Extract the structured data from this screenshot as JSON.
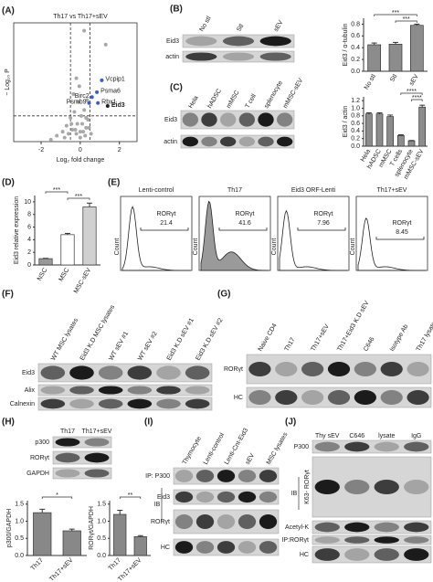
{
  "figure": {
    "panel_labels": [
      "(A)",
      "(B)",
      "(C)",
      "(D)",
      "(E)",
      "(F)",
      "(G)",
      "(H)",
      "(I)",
      "(J)"
    ],
    "B_blot": {
      "lanes": [
        "No stl",
        "Stl",
        "sEV"
      ],
      "rows": [
        "Eid3",
        "actin"
      ]
    },
    "C_blot": {
      "lanes": [
        "Hela",
        "hADSC",
        "mMSC",
        "T cell",
        "splenocyte",
        "mMSC-sEV"
      ],
      "rows": [
        "Eid3",
        "actin"
      ]
    },
    "E_flow": [
      {
        "title": "Lenti-control",
        "gate": "RORγt",
        "percent": "21.4"
      },
      {
        "title": "Th17",
        "gate": "RORγt",
        "percent": "41.6"
      },
      {
        "title": "Eid3 ORF-Lenti",
        "gate": "RORγt",
        "percent": "7.96"
      },
      {
        "title": "Th17+sEV",
        "gate": "RORγt",
        "percent": "8.45"
      }
    ],
    "E_axis": "Count",
    "F_blot": {
      "lanes": [
        "WT MSC lysates",
        "Eid3 K.D MSC lysates",
        "WT sEV #1",
        "WT sEV #2",
        "Eid3 K.D sEV #1",
        "Eid3 K.D sEV #2"
      ],
      "rows": [
        "Eid3",
        "Alix",
        "Calnexin"
      ]
    },
    "G_blot": {
      "lanes": [
        "Naive CD4",
        "Th17",
        "Th17+sEV",
        "Th17+Eid3 K.D sEV",
        "C646",
        "Isotype Ab",
        "Th17 lysates"
      ],
      "rows": [
        "RORγt",
        "HC"
      ]
    },
    "H_blot": {
      "lanes": [
        "Th17",
        "Th17+sEV"
      ],
      "rows": [
        "p300",
        "RORγt",
        "GAPDH"
      ]
    },
    "I_blot": {
      "lanes": [
        "Thymocyte",
        "Lenti-control",
        "Lenti-Cnt-Eid3",
        "sEV",
        "MSC lysates"
      ],
      "rows": [
        "IP: P300",
        "Eid3",
        "RORγt",
        "HC"
      ],
      "ib": "IB"
    },
    "J_blot": {
      "lanes": [
        "Thy sEV",
        "C646",
        "lysate",
        "IgG"
      ],
      "rows": [
        "P300",
        "K63- RORγt",
        "Acetyl-K",
        "IP:RORγt",
        "HC"
      ],
      "ib": "IB"
    }
  },
  "chart_data": [
    {
      "type": "scatter",
      "title": "Th17 vs Th17+sEV",
      "x_label": "Log₂ fold change",
      "y_label": "− Log₁₀ P",
      "xlim": [
        -3.4,
        2.9
      ],
      "ylim": [
        0,
        6
      ],
      "xticks": [
        -2,
        0,
        2
      ],
      "color": "#a8a8a8",
      "thresholds": {
        "x": [
          -0.5,
          0.5
        ],
        "y": 1.3
      },
      "x": [
        -1.2,
        -0.9,
        -0.7,
        -0.5,
        -0.4,
        -0.3,
        -0.2,
        -0.1,
        0,
        0.1,
        0.2,
        0.3,
        0.4,
        -0.6,
        -0.35,
        -0.15,
        0.05,
        0.25,
        0.35,
        -0.8,
        -0.25,
        0.15,
        0.45,
        -0.45,
        0,
        -1.5,
        0.55,
        -0.05,
        0.3,
        -0.2,
        0.2,
        1.3
      ],
      "y": [
        0.3,
        0.5,
        0.8,
        1.2,
        0.6,
        1.5,
        0.4,
        2.0,
        0.2,
        0.9,
        1.6,
        0.7,
        1.1,
        0.4,
        2.4,
        0.9,
        1.3,
        0.3,
        2.1,
        0.2,
        0.6,
        0.5,
        0.7,
        0.9,
        0.5,
        0.1,
        0.4,
        2.8,
        1.2,
        3.2,
        5.6,
        4.9
      ],
      "labeled_points": [
        {
          "label": "Vcpip1",
          "x": 1.1,
          "y": 3.1,
          "color": "#3a5bd9"
        },
        {
          "label": "Psma6",
          "x": 0.85,
          "y": 2.5,
          "color": "#3a5bd9"
        },
        {
          "label": "Birc2",
          "x": 0.6,
          "y": 2.25,
          "color": "#3a5bd9"
        },
        {
          "label": "Psmb9",
          "x": 0.45,
          "y": 1.95,
          "color": "#3a5bd9"
        },
        {
          "label": "Rbx1",
          "x": 0.9,
          "y": 1.95,
          "color": "#3a5bd9"
        },
        {
          "label": "Eid3",
          "x": 1.4,
          "y": 1.8,
          "color": "#222222"
        }
      ]
    },
    {
      "type": "bar",
      "y_label": "Eid3 / α-tubulin",
      "categories": [
        "No stl",
        "Stl",
        "sEV"
      ],
      "values": [
        0.45,
        0.46,
        0.78
      ],
      "errors": [
        0.03,
        0.03,
        0.02
      ],
      "color": "#8c8c8c",
      "ylim": [
        0,
        0.9
      ],
      "yticks": [
        {
          "value": 0,
          "label": "0.0"
        },
        0.2,
        0.4,
        0.6,
        0.8
      ],
      "significance": [
        {
          "pair": [
            "No stl",
            "sEV"
          ],
          "label": "***"
        },
        {
          "pair": [
            "Stl",
            "sEV"
          ],
          "label": "***"
        }
      ]
    },
    {
      "type": "bar",
      "y_label": "Eid3 / actin",
      "categories": [
        "Hela",
        "hADSC",
        "mMSC",
        "T cells",
        "splenocyte",
        "mMSC-sEV"
      ],
      "values": [
        0.85,
        0.85,
        0.78,
        0.28,
        0.14,
        1.03
      ],
      "errors": [
        0.03,
        0.03,
        0.04,
        0.02,
        0.01,
        0.05
      ],
      "color": "#8c8c8c",
      "ylim": [
        0,
        1.3
      ],
      "yticks": [
        {
          "value": 0,
          "label": "0.0"
        },
        0.2,
        0.4,
        0.6,
        0.8,
        {
          "value": 1,
          "label": "1.0"
        },
        1.2
      ],
      "significance": [
        {
          "pair": [
            "T cells",
            "mMSC-sEV"
          ],
          "label": "****"
        },
        {
          "pair": [
            "splenocyte",
            "mMSC-sEV"
          ],
          "label": "****"
        }
      ]
    },
    {
      "type": "bar",
      "y_label": "Eid3 relative expression",
      "categories": [
        "NSC",
        "MSC",
        "MSC-sEV"
      ],
      "values": [
        1,
        4.8,
        9.2
      ],
      "errors": [
        0.05,
        0.2,
        0.6
      ],
      "colors": [
        "#999999",
        "#ffffff",
        "#d0d0d0"
      ],
      "ylim": [
        0,
        11
      ],
      "yticks": [
        0,
        2,
        4,
        6,
        8,
        10
      ],
      "significance": [
        {
          "pair": [
            "NSC",
            "MSC"
          ],
          "label": "***"
        },
        {
          "pair": [
            "MSC",
            "MSC-sEV"
          ],
          "label": "***"
        }
      ]
    },
    {
      "type": "bar",
      "y_label": "p300/GAPDH",
      "categories": [
        "Th17",
        "Th17+sEV"
      ],
      "values": [
        1.25,
        0.72
      ],
      "errors": [
        0.1,
        0.05
      ],
      "color": "#888888",
      "ylim": [
        0,
        1.6
      ],
      "yticks": [
        {
          "value": 0,
          "label": "0.0"
        },
        0.5,
        {
          "value": 1,
          "label": "1.0"
        },
        1.5
      ],
      "significance": [
        {
          "pair": [
            "Th17",
            "Th17+sEV"
          ],
          "label": "*"
        }
      ]
    },
    {
      "type": "bar",
      "y_label": "RORγt/GAPDH",
      "categories": [
        "Th17",
        "Th17+sEV"
      ],
      "values": [
        1.2,
        0.55
      ],
      "errors": [
        0.12,
        0.03
      ],
      "color": "#888888",
      "ylim": [
        0,
        1.6
      ],
      "yticks": [
        {
          "value": 0,
          "label": "0.0"
        },
        0.5,
        {
          "value": 1,
          "label": "1.0"
        },
        1.5
      ],
      "significance": [
        {
          "pair": [
            "Th17",
            "Th17+sEV"
          ],
          "label": "**"
        }
      ]
    }
  ]
}
